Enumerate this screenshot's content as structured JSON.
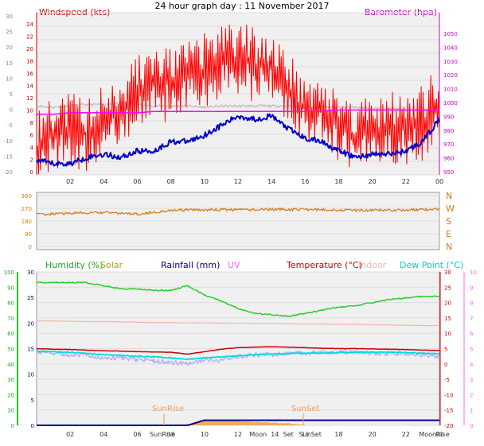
{
  "title": "24 hour graph day : 11 November 2017",
  "colors": {
    "windspeed": "#ff0000",
    "gust": "#0000cc",
    "barometer": "#ff00ff",
    "grey_series": "#bbbbbb",
    "direction": "#dd7711",
    "humidity": "#22cc22",
    "solar": "#aaaa00",
    "rainfall": "#000099",
    "uv": "#ff66ff",
    "temperature": "#cc0000",
    "indoor": "#f4b8a8",
    "dewpoint": "#00dddd",
    "chill": "#b0b0f8",
    "solar_fill": "#f0a040"
  },
  "panels": {
    "wind": {
      "title_left": "Windspeed (kts)",
      "title_right": "Barometer (hpa)",
      "outer_ticks": [
        "30",
        "25",
        "20",
        "15",
        "10",
        "5",
        "0",
        "-5",
        "-10",
        "-15",
        "-20"
      ],
      "inner_ticks": [
        "24",
        "22",
        "20",
        "18",
        "16",
        "14",
        "12",
        "10",
        "8",
        "6",
        "4",
        "2",
        "0"
      ],
      "right_ticks": [
        "1050",
        "1040",
        "1030",
        "1020",
        "1010",
        "1000",
        "990",
        "980",
        "970",
        "960",
        "950"
      ]
    },
    "direction": {
      "left_ticks": [
        "360",
        "270",
        "180",
        "90",
        "0"
      ],
      "compass": [
        "N",
        "W",
        "S",
        "E",
        "N"
      ]
    },
    "bottom": {
      "legend": {
        "humidity": "Humidity (%)",
        "solar": "Solar",
        "rainfall": "Rainfall (mm)",
        "uv": "UV",
        "temperature": "Temperature (°C)",
        "indoor": "Indoor",
        "dewpoint": "Dew Point (°C)"
      },
      "humidity_ticks": [
        "100",
        "90",
        "80",
        "70",
        "60",
        "50",
        "40",
        "30",
        "20",
        "10",
        "0"
      ],
      "rain_ticks": [
        "30",
        "25",
        "20",
        "15",
        "10",
        "5",
        "0"
      ],
      "temp_ticks": [
        "30",
        "25",
        "20",
        "15",
        "10",
        "5",
        "0",
        "-5",
        "-10",
        "-15",
        "-20"
      ],
      "uv_ticks": [
        "10",
        "9",
        "8",
        "7",
        "6",
        "5",
        "4",
        "3",
        "2",
        "1",
        "0"
      ],
      "events": {
        "sunrise_label": "SunRise",
        "sunset_label": "SunSet"
      },
      "x_labels": [
        "02",
        "04",
        "06",
        "SunRise",
        "10",
        "12",
        "Moon",
        "14",
        "Set",
        "SunSet",
        "18",
        "20",
        "22",
        "Moon",
        "Rise"
      ],
      "x_overlap_labels": [
        "08",
        "16",
        "00"
      ]
    }
  },
  "x_labels": [
    "02",
    "04",
    "06",
    "08",
    "10",
    "12",
    "14",
    "16",
    "18",
    "20",
    "22",
    "00"
  ],
  "chart_data": [
    {
      "type": "line",
      "title": "Windspeed (kts)",
      "xlabel": "",
      "x": [
        0,
        1,
        2,
        3,
        4,
        5,
        6,
        7,
        8,
        9,
        10,
        11,
        12,
        13,
        14,
        15,
        16,
        17,
        18,
        19,
        20,
        21,
        22,
        23,
        24
      ],
      "ylim": [
        0,
        25
      ],
      "series": [
        {
          "name": "Windspeed (kts)",
          "values": [
            4,
            6,
            7,
            6,
            8,
            10,
            13,
            14,
            14,
            15,
            16,
            18,
            18,
            17,
            17,
            13,
            10,
            10,
            7,
            6,
            7,
            7,
            7,
            8,
            11
          ]
        },
        {
          "values": [
            2,
            1.5,
            1.5,
            2.5,
            3,
            2.5,
            3.5,
            3.5,
            5,
            5,
            6,
            7.5,
            9,
            8.5,
            9,
            7,
            5.5,
            5,
            3.5,
            2.5,
            3,
            3,
            3.5,
            5,
            8.5
          ]
        },
        {
          "values": [
            993,
            992,
            993,
            994,
            994,
            995,
            994,
            993,
            993,
            993,
            992,
            993,
            993,
            993,
            993,
            993,
            992,
            992,
            992,
            992,
            991,
            991,
            990,
            990,
            989
          ]
        },
        {
          "name": "Barometer (hpa)",
          "values": [
            987,
            987,
            988,
            988,
            988,
            988,
            988,
            989,
            989,
            989,
            989,
            989,
            989,
            989,
            989,
            989,
            989,
            989,
            990,
            990,
            990,
            990,
            990,
            990,
            990
          ]
        }
      ]
    },
    {
      "type": "line",
      "title": "",
      "x": [
        0,
        2,
        4,
        6,
        8,
        10,
        12,
        14,
        16,
        18,
        20,
        22,
        24
      ],
      "ylim": [
        0,
        360
      ],
      "series": [
        {
          "values": [
            225,
            235,
            240,
            230,
            255,
            260,
            260,
            262,
            262,
            258,
            255,
            258,
            262
          ]
        }
      ]
    },
    {
      "type": "line",
      "title": "",
      "x": [
        0,
        1,
        2,
        3,
        4,
        5,
        6,
        7,
        8,
        9,
        10,
        11,
        12,
        13,
        14,
        15,
        16,
        17,
        18,
        19,
        20,
        21,
        22,
        23,
        24
      ],
      "series": [
        {
          "name": "Humidity (%)",
          "axis": "humidity",
          "ylim": [
            0,
            100
          ],
          "values": [
            93,
            93,
            93,
            93,
            91,
            89,
            89,
            88,
            88,
            91,
            85,
            81,
            76,
            73,
            72,
            71,
            73,
            75,
            77,
            78,
            80,
            82,
            83,
            84,
            84
          ]
        },
        {
          "name": "Temperature (°C)",
          "axis": "temperature",
          "ylim": [
            -20,
            30
          ],
          "values": [
            5.0,
            4.8,
            4.7,
            4.5,
            4.3,
            4.2,
            4.0,
            3.9,
            3.8,
            3.2,
            4.0,
            4.8,
            5.3,
            5.5,
            5.6,
            5.5,
            5.3,
            5.1,
            5.0,
            5.0,
            4.9,
            4.8,
            4.7,
            4.5,
            4.4
          ]
        },
        {
          "name": "Dew Point (°C)",
          "axis": "temperature",
          "ylim": [
            -20,
            30
          ],
          "values": [
            4.2,
            4.0,
            3.8,
            3.5,
            3.0,
            2.8,
            2.5,
            2.3,
            2.0,
            1.5,
            2.0,
            2.3,
            2.7,
            3.0,
            3.2,
            3.4,
            3.5,
            3.6,
            3.7,
            3.8,
            3.8,
            3.8,
            3.7,
            3.5,
            3.3
          ]
        },
        {
          "name": "Indoor",
          "axis": "temperature",
          "ylim": [
            -20,
            30
          ],
          "values": [
            14.0,
            14.0,
            13.9,
            13.8,
            13.8,
            13.7,
            13.6,
            13.5,
            13.5,
            13.4,
            13.4,
            13.3,
            13.3,
            13.2,
            13.2,
            13.1,
            13.0,
            13.0,
            12.9,
            12.9,
            12.8,
            12.7,
            12.6,
            12.5,
            12.5
          ]
        },
        {
          "axis": "temperature",
          "ylim": [
            -20,
            30
          ],
          "values": [
            4.0,
            3.5,
            3.0,
            3.0,
            2.0,
            2.0,
            1.5,
            1.0,
            0.5,
            0,
            1.0,
            1.5,
            2.5,
            3.0,
            3.0,
            3.5,
            3.5,
            3.8,
            3.8,
            4.0,
            3.5,
            3.5,
            3.5,
            3.0,
            2.5
          ]
        },
        {
          "name": "Solar",
          "axis": "humidity",
          "ylim": [
            0,
            100
          ],
          "values": [
            0,
            0,
            0,
            0,
            0,
            0,
            0,
            0,
            0,
            0.5,
            3,
            2.5,
            2.5,
            2,
            1.5,
            1,
            0,
            0,
            0,
            0,
            0,
            0,
            0,
            0,
            0
          ]
        },
        {
          "name": "Rainfall (mm)",
          "axis": "rain",
          "ylim": [
            0,
            30
          ],
          "values": [
            0,
            0,
            0,
            0,
            0,
            0,
            0,
            0,
            0,
            0,
            1,
            1,
            1,
            1,
            1,
            1,
            1,
            1,
            1,
            1,
            1,
            1,
            1,
            1,
            1
          ]
        }
      ]
    }
  ]
}
